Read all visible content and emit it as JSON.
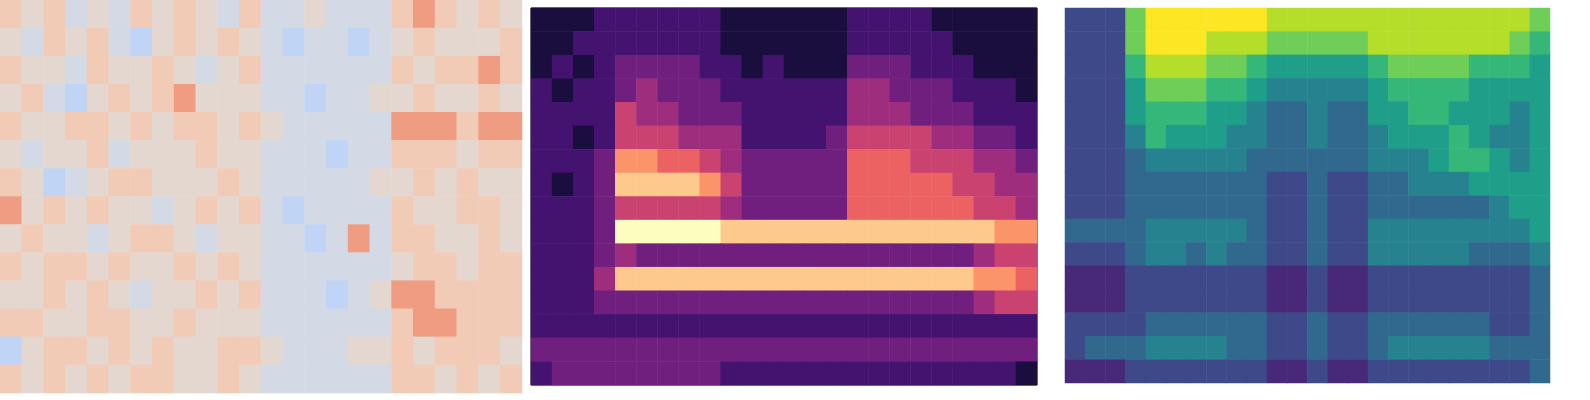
{
  "chart_data": [
    {
      "type": "heatmap",
      "zlim": [
        0,
        9
      ],
      "tick_labels": false,
      "cells": [
        [
          6,
          5,
          6,
          4,
          5,
          4,
          6,
          5,
          6,
          5,
          4,
          6,
          4,
          4,
          5,
          4,
          4,
          4,
          6,
          7,
          6,
          5,
          6,
          5
        ],
        [
          5,
          4,
          6,
          5,
          6,
          4,
          3,
          5,
          6,
          5,
          6,
          5,
          4,
          3,
          4,
          4,
          3,
          4,
          5,
          6,
          5,
          5,
          5,
          6
        ],
        [
          6,
          5,
          5,
          4,
          6,
          5,
          5,
          6,
          5,
          4,
          5,
          6,
          4,
          4,
          4,
          4,
          4,
          4,
          6,
          5,
          6,
          6,
          7,
          6
        ],
        [
          5,
          6,
          4,
          3,
          5,
          6,
          5,
          6,
          7,
          5,
          5,
          5,
          4,
          4,
          3,
          4,
          4,
          5,
          5,
          6,
          5,
          5,
          6,
          5
        ],
        [
          6,
          5,
          5,
          6,
          6,
          5,
          6,
          5,
          6,
          6,
          5,
          6,
          5,
          4,
          4,
          4,
          4,
          4,
          7,
          7,
          7,
          6,
          7,
          7
        ],
        [
          5,
          4,
          5,
          5,
          6,
          4,
          5,
          5,
          5,
          6,
          5,
          5,
          4,
          4,
          4,
          3,
          4,
          4,
          6,
          6,
          6,
          5,
          6,
          6
        ],
        [
          6,
          5,
          3,
          4,
          5,
          6,
          6,
          5,
          5,
          5,
          6,
          5,
          4,
          4,
          4,
          4,
          4,
          5,
          5,
          6,
          5,
          6,
          5,
          5
        ],
        [
          7,
          5,
          6,
          5,
          6,
          5,
          5,
          4,
          5,
          6,
          5,
          6,
          4,
          3,
          4,
          4,
          4,
          4,
          6,
          5,
          5,
          6,
          6,
          5
        ],
        [
          5,
          6,
          5,
          5,
          4,
          5,
          6,
          6,
          5,
          4,
          5,
          5,
          4,
          4,
          3,
          4,
          7,
          4,
          6,
          6,
          5,
          5,
          6,
          5
        ],
        [
          6,
          5,
          6,
          6,
          5,
          6,
          5,
          5,
          6,
          5,
          6,
          5,
          4,
          4,
          4,
          4,
          4,
          4,
          5,
          6,
          6,
          5,
          6,
          6
        ],
        [
          5,
          5,
          6,
          5,
          6,
          5,
          4,
          5,
          5,
          6,
          5,
          6,
          4,
          4,
          4,
          3,
          4,
          5,
          7,
          7,
          6,
          6,
          6,
          6
        ],
        [
          6,
          6,
          5,
          5,
          6,
          6,
          5,
          5,
          6,
          5,
          5,
          5,
          4,
          4,
          4,
          4,
          4,
          4,
          6,
          7,
          7,
          6,
          6,
          6
        ],
        [
          3,
          5,
          6,
          6,
          5,
          6,
          5,
          6,
          5,
          5,
          6,
          6,
          5,
          4,
          4,
          4,
          5,
          5,
          6,
          5,
          6,
          6,
          6,
          5
        ],
        [
          6,
          5,
          6,
          5,
          6,
          5,
          6,
          6,
          5,
          5,
          6,
          5,
          4,
          4,
          4,
          4,
          4,
          4,
          6,
          6,
          5,
          6,
          5,
          6
        ]
      ]
    },
    {
      "type": "heatmap",
      "zlim": [
        0,
        9
      ],
      "tick_labels": false,
      "cells": [
        [
          1,
          1,
          1,
          2,
          2,
          2,
          2,
          2,
          2,
          1,
          1,
          1,
          1,
          1,
          1,
          2,
          2,
          2,
          2,
          1,
          1,
          1,
          1,
          1
        ],
        [
          1,
          1,
          2,
          2,
          2,
          2,
          2,
          2,
          2,
          1,
          1,
          1,
          1,
          1,
          1,
          2,
          2,
          2,
          2,
          2,
          1,
          1,
          1,
          1
        ],
        [
          1,
          2,
          1,
          2,
          3,
          3,
          3,
          3,
          2,
          2,
          1,
          2,
          1,
          1,
          1,
          3,
          3,
          3,
          2,
          2,
          2,
          1,
          1,
          1
        ],
        [
          2,
          1,
          2,
          2,
          3,
          4,
          3,
          3,
          3,
          2,
          2,
          2,
          2,
          2,
          2,
          4,
          4,
          3,
          3,
          3,
          2,
          2,
          2,
          1
        ],
        [
          2,
          2,
          2,
          2,
          5,
          4,
          4,
          3,
          3,
          3,
          2,
          2,
          2,
          2,
          2,
          4,
          4,
          4,
          3,
          3,
          3,
          2,
          2,
          2
        ],
        [
          2,
          2,
          1,
          2,
          5,
          5,
          5,
          4,
          4,
          4,
          2,
          2,
          2,
          2,
          3,
          5,
          5,
          5,
          5,
          4,
          4,
          3,
          3,
          2
        ],
        [
          2,
          2,
          2,
          3,
          7,
          7,
          6,
          6,
          5,
          4,
          3,
          3,
          3,
          3,
          3,
          6,
          6,
          6,
          5,
          5,
          5,
          4,
          4,
          3
        ],
        [
          2,
          1,
          2,
          3,
          8,
          8,
          8,
          8,
          7,
          5,
          3,
          3,
          3,
          3,
          3,
          6,
          6,
          6,
          6,
          6,
          5,
          5,
          4,
          4
        ],
        [
          2,
          2,
          2,
          3,
          5,
          5,
          5,
          5,
          5,
          4,
          3,
          3,
          3,
          3,
          3,
          6,
          6,
          6,
          6,
          6,
          6,
          5,
          5,
          4
        ],
        [
          2,
          2,
          2,
          3,
          9,
          9,
          9,
          9,
          9,
          8,
          8,
          8,
          8,
          8,
          8,
          8,
          8,
          8,
          8,
          8,
          8,
          8,
          7,
          7
        ],
        [
          2,
          2,
          2,
          3,
          4,
          3,
          3,
          3,
          3,
          3,
          3,
          3,
          3,
          3,
          3,
          3,
          3,
          3,
          3,
          3,
          3,
          4,
          5,
          5
        ],
        [
          2,
          2,
          2,
          4,
          8,
          8,
          8,
          8,
          8,
          8,
          8,
          8,
          8,
          8,
          8,
          8,
          8,
          8,
          8,
          8,
          8,
          7,
          7,
          6
        ],
        [
          2,
          2,
          2,
          3,
          3,
          3,
          3,
          3,
          3,
          3,
          3,
          3,
          3,
          3,
          3,
          3,
          3,
          3,
          3,
          3,
          3,
          4,
          5,
          5
        ],
        [
          2,
          2,
          2,
          2,
          2,
          2,
          2,
          2,
          2,
          2,
          2,
          2,
          2,
          2,
          2,
          2,
          2,
          2,
          2,
          2,
          2,
          2,
          2,
          2
        ],
        [
          3,
          3,
          3,
          3,
          3,
          3,
          3,
          3,
          3,
          3,
          3,
          3,
          3,
          3,
          3,
          3,
          3,
          3,
          3,
          3,
          3,
          3,
          3,
          3
        ],
        [
          2,
          3,
          3,
          3,
          3,
          3,
          3,
          3,
          3,
          2,
          2,
          2,
          2,
          2,
          2,
          2,
          2,
          2,
          2,
          2,
          2,
          2,
          2,
          1
        ]
      ]
    },
    {
      "type": "heatmap",
      "zlim": [
        0,
        9
      ],
      "tick_labels": false,
      "cells": [
        [
          2,
          2,
          2,
          7,
          9,
          9,
          9,
          9,
          9,
          9,
          8,
          8,
          8,
          8,
          8,
          8,
          8,
          8,
          8,
          8,
          8,
          8,
          8,
          7
        ],
        [
          2,
          2,
          2,
          7,
          9,
          9,
          9,
          8,
          8,
          8,
          7,
          7,
          7,
          7,
          7,
          8,
          8,
          8,
          8,
          8,
          8,
          8,
          7,
          6
        ],
        [
          2,
          2,
          2,
          6,
          8,
          8,
          8,
          7,
          7,
          6,
          5,
          5,
          5,
          5,
          5,
          6,
          7,
          7,
          7,
          7,
          6,
          6,
          6,
          5
        ],
        [
          2,
          2,
          2,
          5,
          7,
          7,
          7,
          6,
          6,
          5,
          4,
          4,
          4,
          4,
          4,
          5,
          6,
          6,
          6,
          6,
          5,
          5,
          5,
          5
        ],
        [
          2,
          2,
          2,
          5,
          6,
          6,
          6,
          5,
          5,
          4,
          3,
          3,
          4,
          3,
          3,
          5,
          5,
          6,
          6,
          5,
          5,
          5,
          4,
          5
        ],
        [
          2,
          2,
          2,
          4,
          6,
          5,
          5,
          5,
          4,
          4,
          3,
          3,
          4,
          3,
          3,
          4,
          5,
          5,
          5,
          6,
          5,
          4,
          4,
          5
        ],
        [
          2,
          2,
          2,
          3,
          4,
          4,
          4,
          4,
          4,
          3,
          3,
          3,
          3,
          3,
          3,
          4,
          4,
          4,
          5,
          6,
          6,
          5,
          4,
          5
        ],
        [
          2,
          2,
          2,
          3,
          3,
          3,
          3,
          3,
          3,
          3,
          2,
          2,
          3,
          2,
          2,
          3,
          3,
          4,
          4,
          4,
          5,
          5,
          5,
          5
        ],
        [
          2,
          2,
          2,
          3,
          3,
          3,
          3,
          3,
          3,
          3,
          2,
          2,
          3,
          2,
          2,
          3,
          3,
          3,
          3,
          3,
          3,
          4,
          5,
          5
        ],
        [
          3,
          3,
          3,
          3,
          4,
          4,
          4,
          4,
          4,
          3,
          2,
          2,
          3,
          2,
          2,
          4,
          4,
          4,
          4,
          4,
          4,
          4,
          4,
          5
        ],
        [
          2,
          2,
          2,
          3,
          4,
          4,
          3,
          4,
          3,
          3,
          2,
          2,
          3,
          2,
          2,
          4,
          4,
          4,
          4,
          4,
          3,
          3,
          3,
          4
        ],
        [
          1,
          1,
          1,
          2,
          2,
          2,
          2,
          2,
          2,
          2,
          1,
          1,
          2,
          1,
          1,
          2,
          2,
          2,
          2,
          2,
          2,
          2,
          2,
          3
        ],
        [
          1,
          1,
          1,
          2,
          2,
          2,
          2,
          2,
          2,
          2,
          1,
          1,
          2,
          1,
          1,
          2,
          2,
          2,
          2,
          2,
          2,
          2,
          2,
          3
        ],
        [
          2,
          2,
          2,
          2,
          3,
          3,
          3,
          3,
          3,
          3,
          2,
          2,
          3,
          2,
          2,
          3,
          3,
          3,
          3,
          3,
          3,
          2,
          2,
          3
        ],
        [
          2,
          3,
          3,
          3,
          4,
          4,
          4,
          4,
          3,
          3,
          2,
          2,
          3,
          2,
          2,
          3,
          4,
          4,
          4,
          4,
          4,
          3,
          3,
          3
        ],
        [
          1,
          1,
          1,
          2,
          2,
          2,
          2,
          2,
          2,
          2,
          1,
          1,
          2,
          1,
          1,
          2,
          2,
          2,
          2,
          2,
          2,
          2,
          2,
          3
        ]
      ]
    }
  ]
}
